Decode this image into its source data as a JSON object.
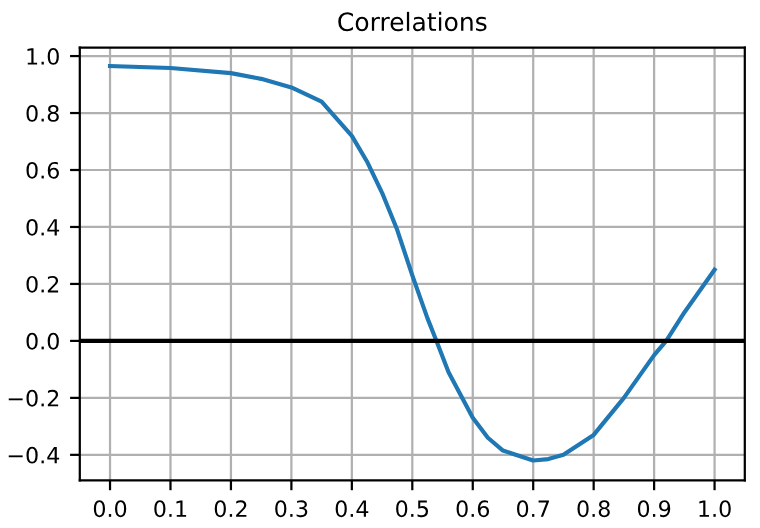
{
  "chart_data": {
    "type": "line",
    "title": "Correlations",
    "x": [
      0.0,
      0.1,
      0.2,
      0.25,
      0.3,
      0.35,
      0.4,
      0.425,
      0.45,
      0.475,
      0.5,
      0.525,
      0.54,
      0.56,
      0.6,
      0.625,
      0.65,
      0.7,
      0.725,
      0.75,
      0.8,
      0.85,
      0.9,
      0.92,
      0.95,
      1.0
    ],
    "series": [
      {
        "color": "#1f77b4",
        "values": [
          0.965,
          0.958,
          0.94,
          0.92,
          0.89,
          0.84,
          0.72,
          0.63,
          0.52,
          0.39,
          0.23,
          0.08,
          0.0,
          -0.11,
          -0.27,
          -0.34,
          -0.385,
          -0.42,
          -0.415,
          -0.4,
          -0.33,
          -0.2,
          -0.05,
          0.0,
          0.1,
          0.25
        ]
      }
    ],
    "xlim": [
      -0.05,
      1.05
    ],
    "ylim": [
      -0.49,
      1.03
    ],
    "xticks": [
      {
        "value": 0.0,
        "label": "0.0"
      },
      0.1,
      0.2,
      0.3,
      0.4,
      0.5,
      0.6,
      0.7,
      0.8,
      0.9,
      {
        "value": 1.0,
        "label": "1.0"
      }
    ],
    "yticks": [
      {
        "value": -0.4,
        "label": "−0.4"
      },
      {
        "value": -0.2,
        "label": "−0.2"
      },
      {
        "value": 0.0,
        "label": "0.0"
      },
      0.2,
      0.4,
      0.6,
      0.8,
      {
        "value": 1.0,
        "label": "1.0"
      }
    ],
    "ref_lines": [
      {
        "axis": "y",
        "value": 0,
        "color": "#000000"
      }
    ],
    "grid": true,
    "legend": false
  }
}
